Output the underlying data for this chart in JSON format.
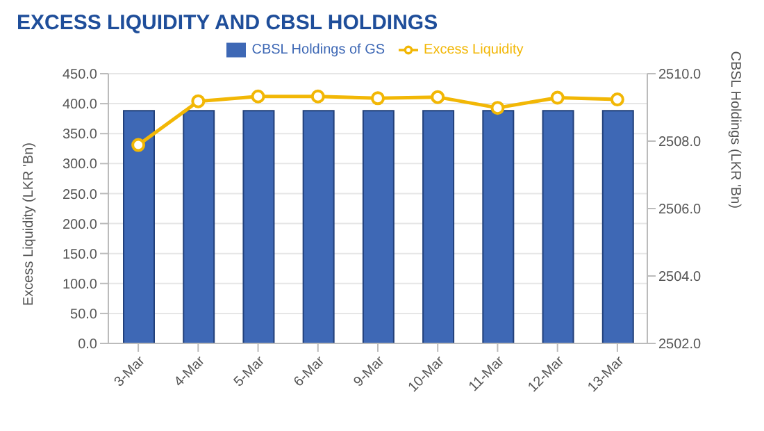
{
  "chart_data": {
    "type": "bar",
    "title": "EXCESS LIQUIDITY AND CBSL HOLDINGS",
    "ylabel": "Excess Liquidity (LKR 'Bn)",
    "y2label": "CBSL Holdings (LKR 'Bn)",
    "categories": [
      "3-Mar",
      "4-Mar",
      "5-Mar",
      "6-Mar",
      "9-Mar",
      "10-Mar",
      "11-Mar",
      "12-Mar",
      "13-Mar"
    ],
    "series": [
      {
        "name": "CBSL Holdings of GS",
        "axis": "y2",
        "color": "#3e68b5",
        "values": [
          2508.9,
          2508.9,
          2508.9,
          2508.9,
          2508.9,
          2508.9,
          2508.9,
          2508.9,
          2508.9
        ]
      },
      {
        "name": "Excess Liquidity",
        "type": "line",
        "color": "#f2b705",
        "marker": "circle",
        "values": [
          331,
          404,
          412,
          412,
          409,
          411,
          393,
          410,
          407
        ]
      }
    ],
    "ylim": [
      0,
      450
    ],
    "yticks": [
      {
        "value": 0,
        "label": "0.0"
      },
      {
        "value": 50,
        "label": "50.0"
      },
      {
        "value": 100,
        "label": "100.0"
      },
      {
        "value": 150,
        "label": "150.0"
      },
      {
        "value": 200,
        "label": "200.0"
      },
      {
        "value": 250,
        "label": "250.0"
      },
      {
        "value": 300,
        "label": "300.0"
      },
      {
        "value": 350,
        "label": "350.0"
      },
      {
        "value": 400,
        "label": "400.0"
      },
      {
        "value": 450,
        "label": "450.0"
      }
    ],
    "y2lim": [
      2502,
      2510
    ],
    "y2ticks": [
      {
        "value": 2502,
        "label": "2502.0"
      },
      {
        "value": 2504,
        "label": "2504.0"
      },
      {
        "value": 2506,
        "label": "2506.0"
      },
      {
        "value": 2508,
        "label": "2508.0"
      },
      {
        "value": 2510,
        "label": "2510.0"
      }
    ],
    "grid": "y",
    "legend": "top"
  }
}
